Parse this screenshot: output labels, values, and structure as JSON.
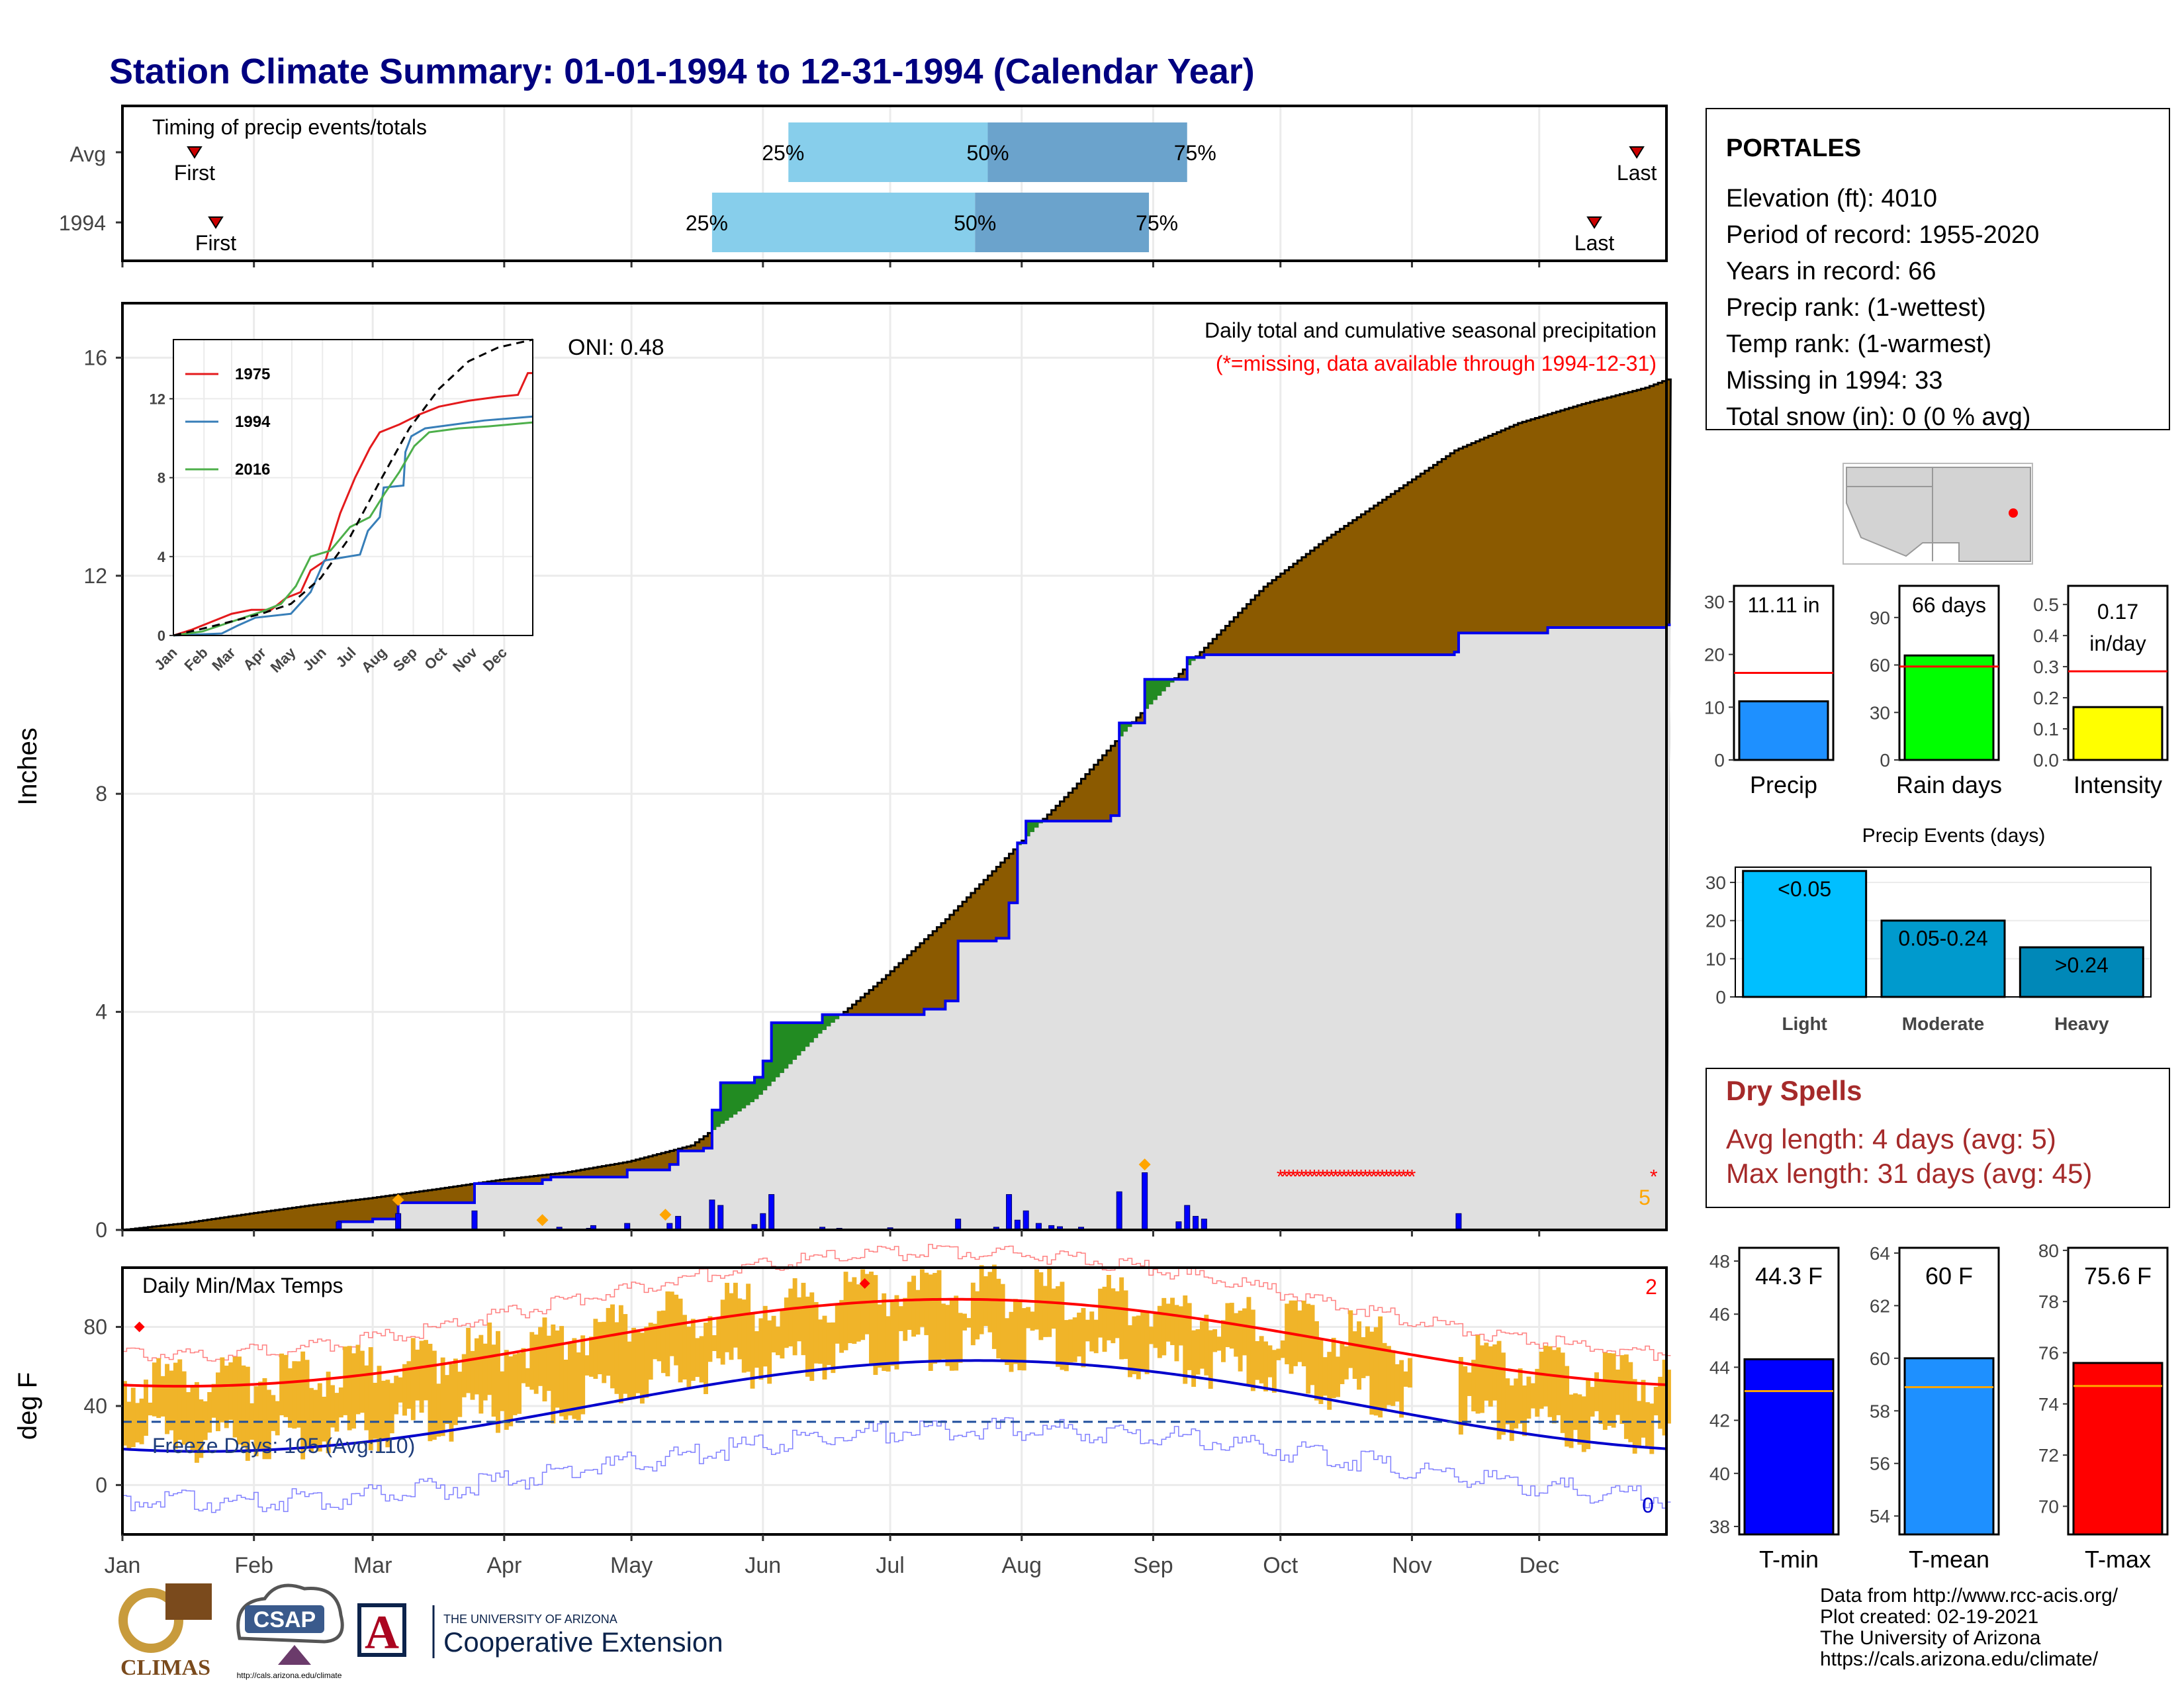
{
  "title": "Station Climate Summary: 01-01-1994 to 12-31-1994 (Calendar Year)",
  "colors": {
    "title": "#000080",
    "brown": "#8B5A00",
    "observed_fill": "#e0e0e0",
    "observed_line": "#0000ee",
    "ahead_fill": "#228B22",
    "light_blue": "#87CEEB",
    "steel_blue": "#6BA3CC",
    "temp_bar": "#F0B429",
    "normal_max": "#ff0000",
    "normal_min": "#0000cc",
    "dry_spell": "#ff0000",
    "dry_text": "#A52A2A"
  },
  "months": [
    "Jan",
    "Feb",
    "Mar",
    "Apr",
    "May",
    "Jun",
    "Jul",
    "Aug",
    "Sep",
    "Oct",
    "Nov",
    "Dec"
  ],
  "timing": {
    "label": "Timing of precip events/totals",
    "rows": [
      {
        "name": "Avg",
        "first_label": "First",
        "last_label": "Last",
        "first_doy": 18,
        "last_doy": 358,
        "p25_doy": 158,
        "p50_doy": 205,
        "p75_doy": 252,
        "p25_label": "25%",
        "p50_label": "50%",
        "p75_label": "75%"
      },
      {
        "name": "1994",
        "first_label": "First",
        "last_label": "Last",
        "first_doy": 23,
        "last_doy": 348,
        "p25_doy": 140,
        "p50_doy": 202,
        "p75_doy": 243,
        "p25_label": "25%",
        "p50_label": "50%",
        "p75_label": "75%"
      }
    ]
  },
  "precip": {
    "ylabel": "Inches",
    "yticks": [
      0,
      4,
      8,
      12,
      16
    ],
    "ylim": [
      0,
      17
    ],
    "annotation": "Daily total and cumulative seasonal precipitation",
    "missing_note": "(*=missing, data available through 1994-12-31)",
    "oni": "ONI: 0.48",
    "missing_count": "5",
    "avg_cum": [
      [
        1,
        0
      ],
      [
        15,
        0.12
      ],
      [
        31,
        0.3
      ],
      [
        45,
        0.45
      ],
      [
        59,
        0.58
      ],
      [
        75,
        0.75
      ],
      [
        90,
        0.92
      ],
      [
        105,
        1.05
      ],
      [
        120,
        1.25
      ],
      [
        135,
        1.55
      ],
      [
        150,
        2.4
      ],
      [
        165,
        3.6
      ],
      [
        180,
        4.6
      ],
      [
        195,
        5.7
      ],
      [
        210,
        6.9
      ],
      [
        225,
        8.1
      ],
      [
        240,
        9.4
      ],
      [
        255,
        10.6
      ],
      [
        270,
        11.8
      ],
      [
        285,
        12.7
      ],
      [
        300,
        13.5
      ],
      [
        315,
        14.3
      ],
      [
        330,
        14.8
      ],
      [
        345,
        15.15
      ],
      [
        360,
        15.45
      ],
      [
        365,
        15.6
      ]
    ],
    "obs_cum": [
      [
        1,
        0
      ],
      [
        50,
        0
      ],
      [
        52,
        0.15
      ],
      [
        60,
        0.2
      ],
      [
        66,
        0.5
      ],
      [
        70,
        0.5
      ],
      [
        84,
        0.85
      ],
      [
        100,
        0.92
      ],
      [
        102,
        0.97
      ],
      [
        120,
        1.1
      ],
      [
        130,
        1.2
      ],
      [
        132,
        1.45
      ],
      [
        138,
        1.5
      ],
      [
        140,
        2.2
      ],
      [
        142,
        2.7
      ],
      [
        150,
        2.8
      ],
      [
        152,
        3.1
      ],
      [
        154,
        3.8
      ],
      [
        166,
        3.95
      ],
      [
        190,
        4.05
      ],
      [
        195,
        4.2
      ],
      [
        198,
        5.3
      ],
      [
        207,
        5.35
      ],
      [
        210,
        6.0
      ],
      [
        212,
        7.1
      ],
      [
        214,
        7.5
      ],
      [
        234,
        7.6
      ],
      [
        236,
        9.3
      ],
      [
        242,
        10.1
      ],
      [
        251,
        10.1
      ],
      [
        252,
        10.5
      ],
      [
        256,
        10.55
      ],
      [
        315,
        10.6
      ],
      [
        316,
        10.95
      ],
      [
        337,
        11.05
      ],
      [
        365,
        11.1
      ]
    ],
    "daily": [
      [
        52,
        0.15
      ],
      [
        66,
        0.3
      ],
      [
        84,
        0.35
      ],
      [
        104,
        0.05
      ],
      [
        111,
        0.03
      ],
      [
        112,
        0.08
      ],
      [
        120,
        0.12
      ],
      [
        130,
        0.12
      ],
      [
        132,
        0.25
      ],
      [
        140,
        0.55
      ],
      [
        142,
        0.45
      ],
      [
        150,
        0.1
      ],
      [
        152,
        0.3
      ],
      [
        154,
        0.65
      ],
      [
        166,
        0.05
      ],
      [
        170,
        0.03
      ],
      [
        182,
        0.04
      ],
      [
        198,
        0.2
      ],
      [
        207,
        0.05
      ],
      [
        210,
        0.65
      ],
      [
        212,
        0.18
      ],
      [
        214,
        0.35
      ],
      [
        217,
        0.12
      ],
      [
        220,
        0.08
      ],
      [
        222,
        0.06
      ],
      [
        227,
        0.05
      ],
      [
        236,
        0.7
      ],
      [
        242,
        1.05
      ],
      [
        250,
        0.15
      ],
      [
        252,
        0.45
      ],
      [
        254,
        0.25
      ],
      [
        256,
        0.2
      ],
      [
        316,
        0.3
      ]
    ],
    "highlights": [
      [
        66,
        0.55
      ],
      [
        100,
        0.18
      ],
      [
        129,
        0.28
      ],
      [
        242,
        1.2
      ]
    ],
    "dry_spell": {
      "start_doy": 274,
      "end_doy": 305,
      "value": 1.0
    },
    "missing_marker_doy": 362
  },
  "inset": {
    "xlabels": [
      "Jan",
      "Feb",
      "Mar",
      "Apr",
      "May",
      "Jun",
      "Jul",
      "Aug",
      "Sep",
      "Oct",
      "Nov",
      "Dec"
    ],
    "yticks": [
      0,
      4,
      8,
      12
    ],
    "ylim": [
      0,
      15
    ],
    "series": [
      {
        "name": "1975",
        "color": "#e41a1c",
        "points": [
          [
            1,
            0
          ],
          [
            20,
            0.3
          ],
          [
            40,
            0.7
          ],
          [
            60,
            1.1
          ],
          [
            80,
            1.3
          ],
          [
            100,
            1.3
          ],
          [
            115,
            1.9
          ],
          [
            130,
            2.2
          ],
          [
            140,
            3.3
          ],
          [
            155,
            3.8
          ],
          [
            170,
            6.2
          ],
          [
            185,
            8
          ],
          [
            200,
            9.5
          ],
          [
            210,
            10.3
          ],
          [
            230,
            10.7
          ],
          [
            250,
            11.2
          ],
          [
            270,
            11.6
          ],
          [
            300,
            11.9
          ],
          [
            330,
            12.1
          ],
          [
            350,
            12.2
          ],
          [
            360,
            13.3
          ],
          [
            365,
            13.3
          ]
        ]
      },
      {
        "name": "1994",
        "color": "#377eb8",
        "points": [
          [
            1,
            0
          ],
          [
            50,
            0.1
          ],
          [
            66,
            0.5
          ],
          [
            84,
            0.9
          ],
          [
            120,
            1.1
          ],
          [
            140,
            2.2
          ],
          [
            154,
            3.8
          ],
          [
            190,
            4.1
          ],
          [
            198,
            5.3
          ],
          [
            210,
            6
          ],
          [
            214,
            7.5
          ],
          [
            234,
            7.6
          ],
          [
            236,
            9.3
          ],
          [
            242,
            10.1
          ],
          [
            256,
            10.5
          ],
          [
            316,
            10.9
          ],
          [
            365,
            11.1
          ]
        ]
      },
      {
        "name": "2016",
        "color": "#4daf4a",
        "points": [
          [
            1,
            0
          ],
          [
            30,
            0.2
          ],
          [
            60,
            0.7
          ],
          [
            90,
            1.2
          ],
          [
            110,
            1.6
          ],
          [
            125,
            2.5
          ],
          [
            140,
            4.0
          ],
          [
            160,
            4.3
          ],
          [
            180,
            5.5
          ],
          [
            200,
            6.0
          ],
          [
            215,
            7.2
          ],
          [
            230,
            8.3
          ],
          [
            245,
            9.6
          ],
          [
            260,
            10.3
          ],
          [
            290,
            10.5
          ],
          [
            320,
            10.6
          ],
          [
            365,
            10.8
          ]
        ]
      }
    ],
    "avg_curve": [
      [
        1,
        0
      ],
      [
        31,
        0.35
      ],
      [
        59,
        0.7
      ],
      [
        90,
        1.1
      ],
      [
        120,
        1.6
      ],
      [
        150,
        2.9
      ],
      [
        180,
        5.0
      ],
      [
        210,
        7.8
      ],
      [
        240,
        10.5
      ],
      [
        270,
        12.5
      ],
      [
        300,
        13.9
      ],
      [
        330,
        14.6
      ],
      [
        365,
        15.0
      ]
    ]
  },
  "temps": {
    "ylabel": "deg F",
    "label": "Daily Min/Max Temps",
    "yticks": [
      0,
      40,
      80
    ],
    "ylim": [
      -25,
      110
    ],
    "freeze_label": "Freeze Days: 105 (Avg:110)",
    "freeze_level": 32,
    "missing_hi": "2",
    "missing_lo": "0",
    "missing_gap": [
      305,
      315
    ],
    "max_record_doy": 176,
    "max_record_val": 102,
    "jan_record_val": 80
  },
  "station": {
    "name": "PORTALES",
    "lines": [
      "Elevation (ft): 4010",
      "Period of record: 1955-2020",
      "Years in record: 66",
      "Precip rank:  (1-wettest)",
      "Temp rank:  (1-warmest)",
      "Missing in 1994: 33",
      "Total snow (in): 0 (0 % avg)"
    ]
  },
  "mini_bars": [
    {
      "name": "Precip",
      "value": 11.11,
      "label": "11.11 in",
      "avg": 16.5,
      "ymax": 33,
      "yticks": [
        "0",
        "10",
        "20",
        "30"
      ],
      "ytick_vals": [
        0,
        10,
        20,
        30
      ],
      "color": "#1E90FF"
    },
    {
      "name": "Rain days",
      "value": 66,
      "label": "66 days",
      "avg": 59,
      "ymax": 110,
      "yticks": [
        "0",
        "30",
        "60",
        "90"
      ],
      "ytick_vals": [
        0,
        30,
        60,
        90
      ],
      "color": "#00FF00"
    },
    {
      "name": "Intensity",
      "value": 0.17,
      "label": "0.17 in/day",
      "label_line1": "0.17",
      "label_line2": "in/day",
      "avg": 0.285,
      "ymax": 0.56,
      "yticks": [
        "0.0",
        "0.1",
        "0.2",
        "0.3",
        "0.4",
        "0.5"
      ],
      "ytick_vals": [
        0,
        0.1,
        0.2,
        0.3,
        0.4,
        0.5
      ],
      "color": "#FFFF00"
    }
  ],
  "events": {
    "title": "Precip Events (days)",
    "yticks": [
      0,
      10,
      20,
      30
    ],
    "ymax": 34,
    "bars": [
      {
        "name": "Light",
        "label": "<0.05",
        "value": 33,
        "color": "#00BFFF"
      },
      {
        "name": "Moderate",
        "label": "0.05-0.24",
        "value": 20,
        "color": "#009ACD"
      },
      {
        "name": "Heavy",
        "label": ">0.24",
        "value": 13,
        "color": "#0088B8"
      }
    ]
  },
  "dry": {
    "title": "Dry Spells",
    "avg_line": "Avg length: 4 days (avg: 5)",
    "max_line": "Max length: 31 days (avg: 45)"
  },
  "temp_bars": [
    {
      "name": "T-min",
      "value": 44.3,
      "label": "44.3 F",
      "avg": 43.1,
      "ymin": 37.7,
      "ymax": 48.5,
      "ytick_vals": [
        38,
        40,
        42,
        44,
        46,
        48
      ],
      "color": "#0000FF"
    },
    {
      "name": "T-mean",
      "value": 60.0,
      "label": "60 F",
      "avg": 58.9,
      "ymin": 53.3,
      "ymax": 64.2,
      "ytick_vals": [
        54,
        56,
        58,
        60,
        62,
        64
      ],
      "color": "#1E90FF"
    },
    {
      "name": "T-max",
      "value": 75.6,
      "label": "75.6 F",
      "avg": 74.7,
      "ymin": 68.9,
      "ymax": 80.1,
      "ytick_vals": [
        70,
        72,
        74,
        76,
        78,
        80
      ],
      "color": "#FF0000"
    }
  ],
  "footer": {
    "lines": [
      "Data from http://www.rcc-acis.org/",
      "Plot created: 02-19-2021",
      "The University of Arizona",
      "https://cals.arizona.edu/climate/"
    ],
    "climas": "CLIMAS",
    "csap": "CSAP",
    "csap_url": "http://cals.arizona.edu/climate",
    "ua_small": "THE UNIVERSITY OF ARIZONA",
    "ua_big": "Cooperative Extension",
    "ua_letter": "A"
  }
}
